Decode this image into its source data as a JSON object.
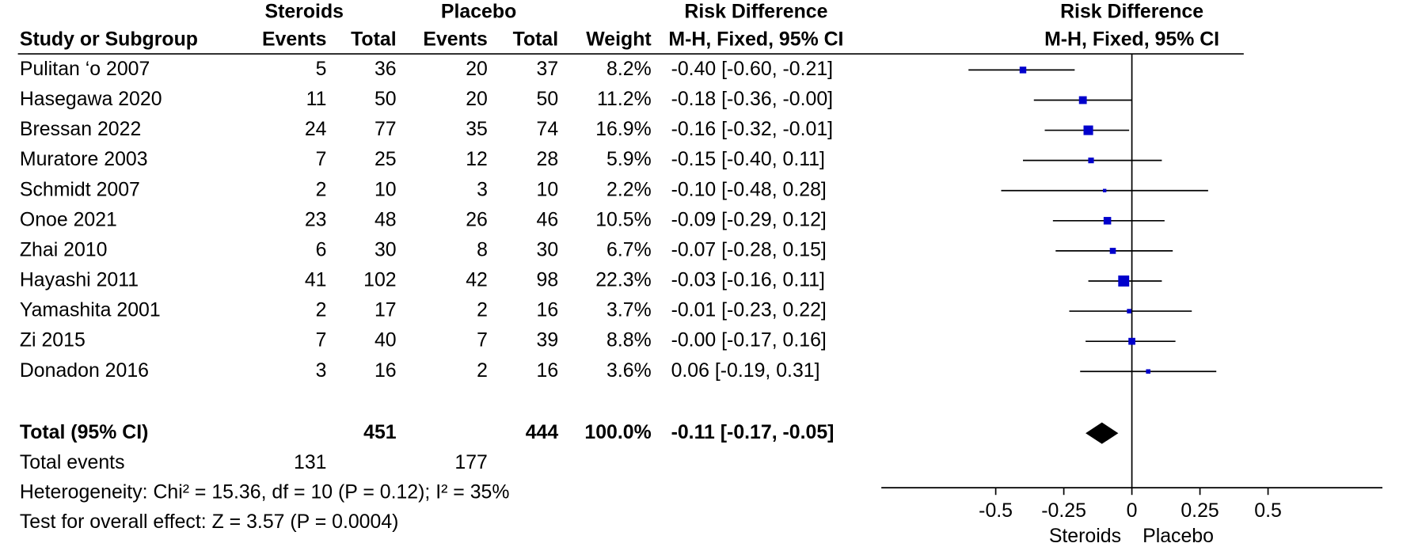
{
  "table": {
    "group_headers": {
      "steroids": "Steroids",
      "placebo": "Placebo",
      "effect": "Risk Difference"
    },
    "columns": [
      "Study or Subgroup",
      "Events",
      "Total",
      "Events",
      "Total",
      "Weight",
      "M-H, Fixed, 95% CI"
    ],
    "rows": [
      [
        "Pulitan ‘o 2007",
        "5",
        "36",
        "20",
        "37",
        "8.2%",
        "-0.40 [-0.60, -0.21]"
      ],
      [
        "Hasegawa 2020",
        "11",
        "50",
        "20",
        "50",
        "11.2%",
        "-0.18 [-0.36, -0.00]"
      ],
      [
        "Bressan 2022",
        "24",
        "77",
        "35",
        "74",
        "16.9%",
        "-0.16 [-0.32, -0.01]"
      ],
      [
        "Muratore 2003",
        "7",
        "25",
        "12",
        "28",
        "5.9%",
        "-0.15 [-0.40, 0.11]"
      ],
      [
        "Schmidt 2007",
        "2",
        "10",
        "3",
        "10",
        "2.2%",
        "-0.10 [-0.48, 0.28]"
      ],
      [
        "Onoe 2021",
        "23",
        "48",
        "26",
        "46",
        "10.5%",
        "-0.09 [-0.29, 0.12]"
      ],
      [
        "Zhai 2010",
        "6",
        "30",
        "8",
        "30",
        "6.7%",
        "-0.07 [-0.28, 0.15]"
      ],
      [
        "Hayashi 2011",
        "41",
        "102",
        "42",
        "98",
        "22.3%",
        "-0.03 [-0.16, 0.11]"
      ],
      [
        "Yamashita 2001",
        "2",
        "17",
        "2",
        "16",
        "3.7%",
        "-0.01 [-0.23, 0.22]"
      ],
      [
        "Zi 2015",
        "7",
        "40",
        "7",
        "39",
        "8.8%",
        "-0.00 [-0.17, 0.16]"
      ],
      [
        "Donadon 2016",
        "3",
        "16",
        "2",
        "16",
        "3.6%",
        "0.06 [-0.19, 0.31]"
      ]
    ],
    "total_row": {
      "label": "Total (95% CI)",
      "steroids_total": "451",
      "placebo_total": "444",
      "weight": "100.0%",
      "ci": "-0.11 [-0.17, -0.05]"
    },
    "total_events": {
      "label": "Total events",
      "steroids": "131",
      "placebo": "177"
    },
    "heterogeneity": "Heterogeneity: Chi² = 15.36, df = 10 (P = 0.12); I² = 35%",
    "overall_effect": "Test for overall effect: Z = 3.57 (P = 0.0004)"
  },
  "chart_data": {
    "type": "forest",
    "title": "Risk Difference",
    "subtitle": "M-H, Fixed, 95% CI",
    "values": [
      -0.4,
      -0.18,
      -0.16,
      -0.15,
      -0.1,
      -0.09,
      -0.07,
      -0.03,
      -0.01,
      -0.0,
      0.06
    ],
    "lower": [
      -0.6,
      -0.36,
      -0.32,
      -0.4,
      -0.48,
      -0.29,
      -0.28,
      -0.16,
      -0.23,
      -0.17,
      -0.19
    ],
    "upper": [
      -0.21,
      -0.0,
      -0.01,
      0.11,
      0.28,
      0.12,
      0.15,
      0.11,
      0.22,
      0.16,
      0.31
    ],
    "weights": [
      8.2,
      11.2,
      16.9,
      5.9,
      2.2,
      10.5,
      6.7,
      22.3,
      3.7,
      8.8,
      3.6
    ],
    "total": {
      "value": -0.11,
      "lower": -0.17,
      "upper": -0.05
    },
    "xlim": [
      -0.92,
      0.92
    ],
    "xticks": [
      -0.5,
      -0.25,
      0,
      0.25,
      0.5
    ],
    "x_labels": {
      "left": "Steroids",
      "right": "Placebo"
    },
    "color": "#0000cc"
  }
}
